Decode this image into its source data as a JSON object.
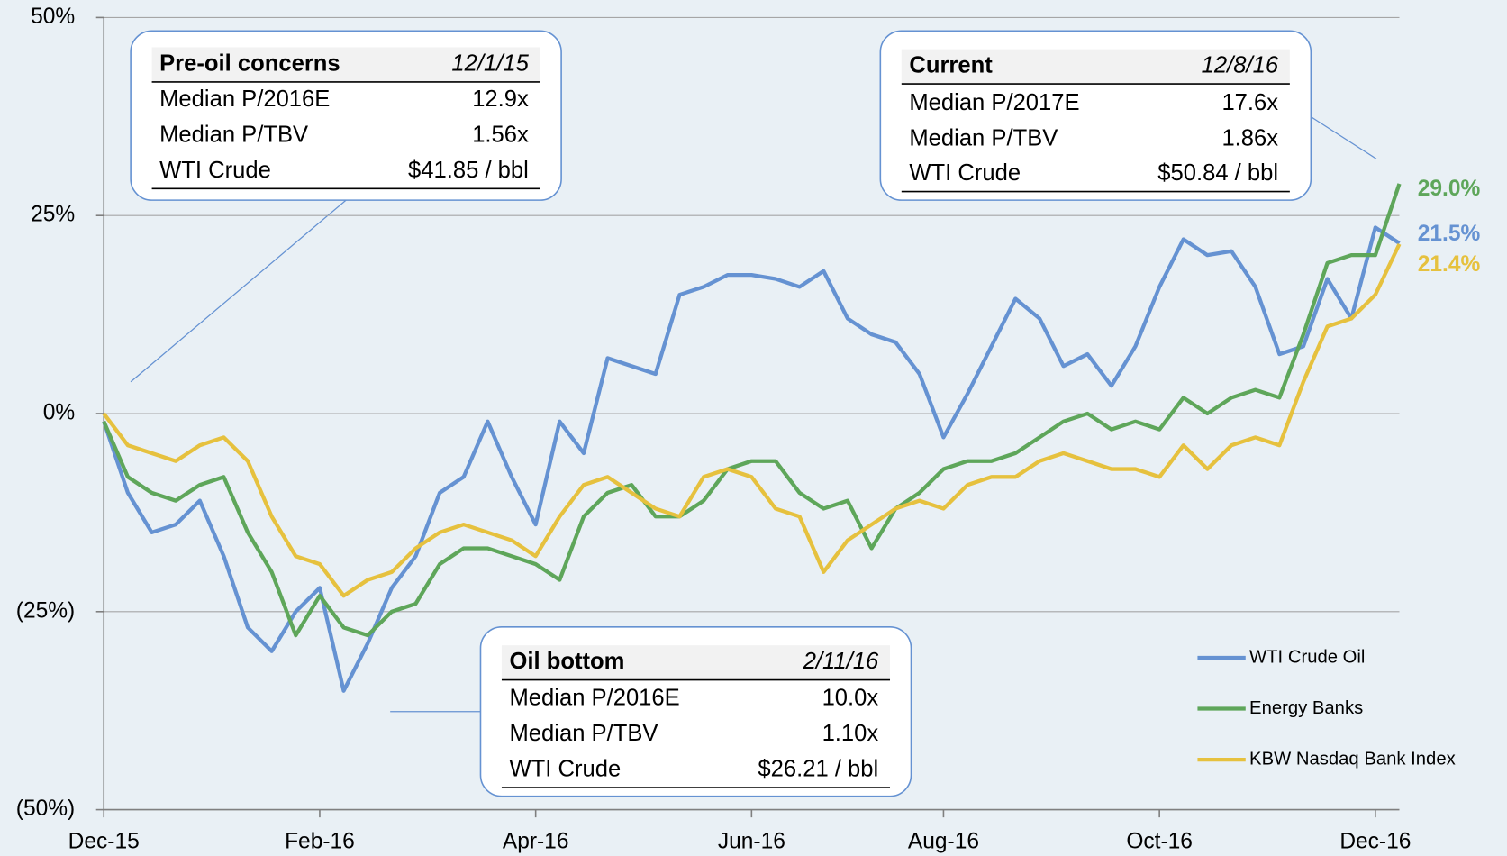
{
  "chart_data": {
    "type": "line",
    "categories": [
      "Dec-15",
      null,
      null,
      null,
      null,
      null,
      null,
      null,
      null,
      "Feb-16",
      null,
      null,
      null,
      null,
      null,
      null,
      null,
      null,
      "Apr-16",
      null,
      null,
      null,
      null,
      null,
      null,
      null,
      null,
      "Jun-16",
      null,
      null,
      null,
      null,
      null,
      null,
      null,
      "Aug-16",
      null,
      null,
      null,
      null,
      null,
      null,
      null,
      null,
      "Oct-16",
      null,
      null,
      null,
      null,
      null,
      null,
      null,
      null,
      "Dec-16",
      null
    ],
    "series": [
      {
        "name": "WTI Crude Oil",
        "color": "#6592d2",
        "values": [
          -1,
          -10,
          -15,
          -14,
          -11,
          -18,
          -27,
          -30,
          -25,
          -22,
          -35,
          -29,
          -22,
          -18,
          -10,
          -8,
          -1,
          -8,
          -14,
          -1,
          -5,
          7,
          6,
          5,
          15,
          16,
          17.5,
          17.5,
          17,
          16,
          18,
          12,
          10,
          9,
          5,
          -3,
          2.5,
          8.5,
          14.5,
          12,
          6,
          7.5,
          3.5,
          8.5,
          16,
          22,
          20,
          20.5,
          16,
          7.5,
          8.5,
          17,
          12,
          23.5,
          21.5
        ],
        "value_labels": [
          null,
          null,
          null,
          null,
          null,
          null,
          null,
          null,
          null,
          null,
          null,
          null,
          null,
          null,
          null,
          null,
          null,
          null,
          null,
          null,
          null,
          null,
          null,
          null,
          null,
          null,
          null,
          null,
          null,
          null,
          null,
          null,
          null,
          null,
          null,
          null,
          null,
          null,
          null,
          null,
          null,
          null,
          null,
          null,
          null,
          null,
          null,
          null,
          null,
          null,
          null,
          null,
          null,
          null,
          "21.5%"
        ]
      },
      {
        "name": "Energy Banks",
        "color": "#5ea65a",
        "values": [
          -1,
          -8,
          -10,
          -11,
          -9,
          -8,
          -15,
          -20,
          -28,
          -23,
          -27,
          -28,
          -25,
          -24,
          -19,
          -17,
          -17,
          -18,
          -19,
          -21,
          -13,
          -10,
          -9,
          -13,
          -13,
          -11,
          -7,
          -6,
          -6,
          -10,
          -12,
          -11,
          -17,
          -12,
          -10,
          -7,
          -6,
          -6,
          -5,
          -3,
          -1,
          0,
          -2,
          -1,
          -2,
          2,
          0,
          2,
          3,
          2,
          10,
          19,
          20,
          20,
          29
        ],
        "value_labels": [
          null,
          null,
          null,
          null,
          null,
          null,
          null,
          null,
          null,
          null,
          null,
          null,
          null,
          null,
          null,
          null,
          null,
          null,
          null,
          null,
          null,
          null,
          null,
          null,
          null,
          null,
          null,
          null,
          null,
          null,
          null,
          null,
          null,
          null,
          null,
          null,
          null,
          null,
          null,
          null,
          null,
          null,
          null,
          null,
          null,
          null,
          null,
          null,
          null,
          null,
          null,
          null,
          null,
          null,
          "29.0%"
        ]
      },
      {
        "name": "KBW Nasdaq Bank Index",
        "color": "#e6c13e",
        "values": [
          0,
          -4,
          -5,
          -6,
          -4,
          -3,
          -6,
          -13,
          -18,
          -19,
          -23,
          -21,
          -20,
          -17,
          -15,
          -14,
          -15,
          -16,
          -18,
          -13,
          -9,
          -8,
          -10,
          -12,
          -13,
          -8,
          -7,
          -8,
          -12,
          -13,
          -20,
          -16,
          -14,
          -12,
          -11,
          -12,
          -9,
          -8,
          -8,
          -6,
          -5,
          -6,
          -7,
          -7,
          -8,
          -4,
          -7,
          -4,
          -3,
          -4,
          4,
          11,
          12,
          15,
          21.4
        ],
        "value_labels": [
          null,
          null,
          null,
          null,
          null,
          null,
          null,
          null,
          null,
          null,
          null,
          null,
          null,
          null,
          null,
          null,
          null,
          null,
          null,
          null,
          null,
          null,
          null,
          null,
          null,
          null,
          null,
          null,
          null,
          null,
          null,
          null,
          null,
          null,
          null,
          null,
          null,
          null,
          null,
          null,
          null,
          null,
          null,
          null,
          null,
          null,
          null,
          null,
          null,
          null,
          null,
          null,
          null,
          null,
          "21.4%"
        ]
      }
    ],
    "ylim": [
      -50,
      50
    ],
    "yticks": [
      {
        "value": -50,
        "label": "(50%)"
      },
      {
        "value": -25,
        "label": "(25%)"
      },
      {
        "value": 0,
        "label": "0%"
      },
      {
        "value": 25,
        "label": "25%"
      },
      {
        "value": 50,
        "label": "50%"
      }
    ],
    "grid": true,
    "legend": "lower right",
    "annotations": [
      {
        "title": "Pre-oil concerns",
        "date": "12/1/15",
        "rows": [
          [
            "Median P/2016E",
            "12.9x"
          ],
          [
            "Median P/TBV",
            "1.56x"
          ],
          [
            "WTI Crude",
            "$41.85 / bbl"
          ]
        ]
      },
      {
        "title": "Current",
        "date": "12/8/16",
        "rows": [
          [
            "Median P/2017E",
            "17.6x"
          ],
          [
            "Median P/TBV",
            "1.86x"
          ],
          [
            "WTI Crude",
            "$50.84 / bbl"
          ]
        ]
      },
      {
        "title": "Oil bottom",
        "date": "2/11/16",
        "rows": [
          [
            "Median P/2016E",
            "10.0x"
          ],
          [
            "Median P/TBV",
            "1.10x"
          ],
          [
            "WTI Crude",
            "$26.21 / bbl"
          ]
        ]
      }
    ]
  }
}
